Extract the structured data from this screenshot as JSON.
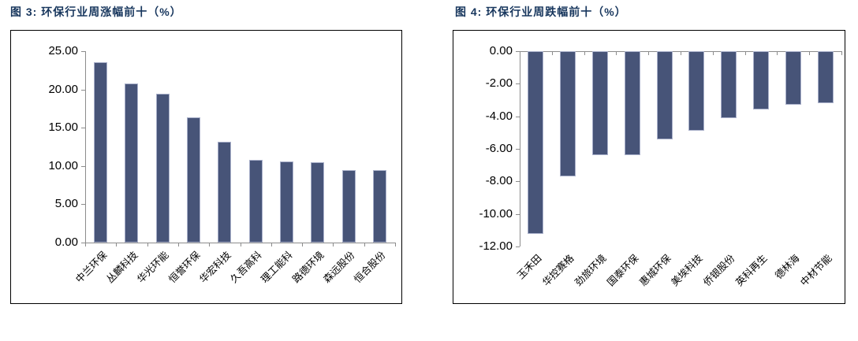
{
  "colors": {
    "background": "#ffffff",
    "title_navy": "#17365d",
    "bar_fill": "#475478",
    "bar_edge_highlight": "#a9b0ca",
    "axis_gray": "#8c8c8c",
    "panel_border": "#000000",
    "tick_text": "#000000"
  },
  "chart_data": [
    {
      "type": "bar",
      "title": "图 3: 环保行业周涨幅前十（%）",
      "categories": [
        "中兰环保",
        "丛麟科技",
        "华光环能",
        "恒誉环保",
        "华宏科技",
        "久吾高科",
        "理工能科",
        "路德环境",
        "森远股份",
        "恒合股份"
      ],
      "values": [
        23.6,
        20.8,
        19.5,
        16.4,
        13.2,
        10.8,
        10.6,
        10.5,
        9.5,
        9.5
      ],
      "xlabel": "",
      "ylabel": "",
      "ylim": [
        0,
        25
      ],
      "yticks": [
        25,
        20,
        15,
        10,
        5,
        0
      ],
      "ytick_labels": [
        "25.00",
        "20.00",
        "15.00",
        "10.00",
        "5.00",
        "0.00"
      ],
      "grid": false,
      "legend": null,
      "bar_color": "#475478",
      "category_label_rotation_deg": 45
    },
    {
      "type": "bar",
      "title": "图 4: 环保行业周跌幅前十（%）",
      "categories": [
        "玉禾田",
        "华控赛格",
        "劲旅环境",
        "国泰环保",
        "惠城环保",
        "美埃科技",
        "侨银股份",
        "英科再生",
        "德林海",
        "中材节能"
      ],
      "values": [
        -11.2,
        -7.7,
        -6.4,
        -6.4,
        -5.4,
        -4.9,
        -4.1,
        -3.6,
        -3.3,
        -3.2
      ],
      "xlabel": "",
      "ylabel": "",
      "ylim": [
        -12,
        0
      ],
      "yticks": [
        0,
        -2,
        -4,
        -6,
        -8,
        -10,
        -12
      ],
      "ytick_labels": [
        "0.00",
        "-2.00",
        "-4.00",
        "-6.00",
        "-8.00",
        "-10.00",
        "-12.00"
      ],
      "grid": false,
      "legend": null,
      "bar_color": "#475478",
      "category_label_rotation_deg": 45
    }
  ]
}
